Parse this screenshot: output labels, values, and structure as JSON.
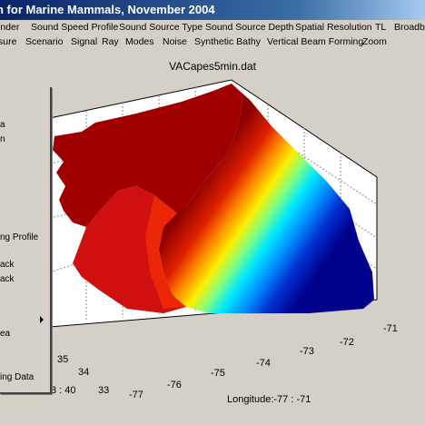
{
  "window": {
    "title": "h for Marine Mammals, November 2004"
  },
  "menu_row1": [
    "inder",
    "Sound Speed Profile",
    "Sound Source Type",
    "Sound Source Depth",
    "Spatial Resolution",
    "TL",
    "Broadba"
  ],
  "menu_row2": [
    "sure",
    "Scenario",
    "Signal",
    "Ray",
    "Modes",
    "Noise",
    "Synthetic Bathy",
    "Vertical Beam Forming",
    "Zoom"
  ],
  "plot": {
    "title": "VACapes5min.dat",
    "xlabel": "Longitude:-77 : -71"
  },
  "popup_items": [
    "a",
    "n",
    "ng Profile",
    "ack",
    "ack",
    "ea",
    "ing Data"
  ],
  "axis": {
    "lon_ticks": [
      "-77",
      "-76",
      "-75",
      "-74",
      "-73",
      "-72",
      "-71"
    ],
    "lat_ticks": [
      "33",
      "34",
      "35"
    ],
    "partial_label": "3 : 40"
  },
  "colors": {
    "title_bar": "#0a246a",
    "face": "#d4d0c8",
    "land": "#a00000",
    "deep": "#00008b"
  }
}
